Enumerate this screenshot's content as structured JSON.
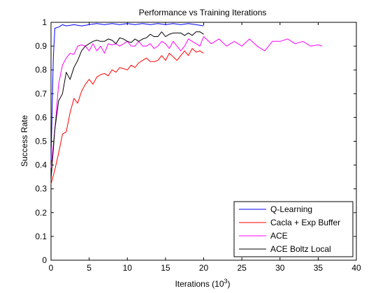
{
  "chart_data": {
    "type": "line",
    "title": "Performance vs Training Iterations",
    "xlabel": "Iterations (10",
    "xlabel_sup": "3",
    "xlabel_close": ")",
    "ylabel": "Success Rate",
    "xlim": [
      0,
      40
    ],
    "ylim": [
      0,
      1
    ],
    "xticks": [
      0,
      5,
      10,
      15,
      20,
      25,
      30,
      35,
      40
    ],
    "yticks": [
      0,
      0.1,
      0.2,
      0.3,
      0.4,
      0.5,
      0.6,
      0.7,
      0.8,
      0.9,
      1
    ],
    "xtick_labels": [
      "0",
      "5",
      "10",
      "15",
      "20",
      "25",
      "30",
      "35",
      "40"
    ],
    "ytick_labels": [
      "0",
      "0.1",
      "0.2",
      "0.3",
      "0.4",
      "0.5",
      "0.6",
      "0.7",
      "0.8",
      "0.9",
      "1"
    ],
    "grid": false,
    "legend_position": "bottom-right",
    "series": [
      {
        "name": "Q-Learning",
        "color": "#0000ff",
        "x": [
          0,
          0.3,
          0.5,
          1,
          1.5,
          2,
          3,
          4,
          5,
          6,
          7,
          8,
          9,
          10,
          11,
          12,
          13,
          14,
          15,
          16,
          17,
          18,
          19,
          20
        ],
        "y": [
          0.42,
          0.85,
          0.975,
          0.98,
          0.99,
          0.985,
          0.99,
          0.985,
          0.99,
          0.995,
          0.99,
          0.995,
          0.99,
          0.995,
          0.99,
          0.995,
          0.99,
          0.995,
          0.99,
          0.995,
          0.99,
          0.995,
          0.99,
          0.985
        ]
      },
      {
        "name": "Cacla + Exp Buffer",
        "color": "#ff0000",
        "x": [
          0,
          0.5,
          1,
          1.5,
          2,
          2.5,
          3,
          3.5,
          4,
          4.5,
          5,
          5.5,
          6,
          6.5,
          7,
          7.5,
          8,
          8.5,
          9,
          9.5,
          10,
          10.5,
          11,
          11.5,
          12,
          12.5,
          13,
          13.5,
          14,
          14.5,
          15,
          15.5,
          16,
          16.5,
          17,
          17.5,
          18,
          18.5,
          19,
          19.5,
          20
        ],
        "y": [
          0.32,
          0.38,
          0.45,
          0.53,
          0.54,
          0.62,
          0.68,
          0.66,
          0.71,
          0.74,
          0.76,
          0.74,
          0.77,
          0.78,
          0.785,
          0.775,
          0.8,
          0.79,
          0.81,
          0.805,
          0.8,
          0.82,
          0.81,
          0.83,
          0.84,
          0.85,
          0.835,
          0.835,
          0.84,
          0.86,
          0.84,
          0.87,
          0.855,
          0.84,
          0.86,
          0.88,
          0.86,
          0.89,
          0.875,
          0.88,
          0.87
        ]
      },
      {
        "name": "ACE",
        "color": "#ff00ff",
        "x": [
          0,
          0.5,
          1,
          1.5,
          2,
          2.5,
          3,
          3.5,
          4,
          4.5,
          5,
          5.5,
          6,
          6.5,
          7,
          7.5,
          8,
          8.5,
          9,
          9.5,
          10,
          10.5,
          11,
          11.5,
          12,
          12.5,
          13,
          13.5,
          14,
          14.5,
          15,
          15.5,
          16,
          16.5,
          17,
          17.5,
          18,
          18.5,
          19,
          19.5,
          20,
          21,
          22,
          23,
          24,
          25,
          26,
          27,
          28,
          29,
          30,
          31,
          32,
          33,
          34,
          35,
          35.5
        ],
        "y": [
          0.39,
          0.55,
          0.74,
          0.82,
          0.85,
          0.87,
          0.865,
          0.9,
          0.905,
          0.9,
          0.88,
          0.91,
          0.88,
          0.9,
          0.87,
          0.91,
          0.905,
          0.91,
          0.9,
          0.91,
          0.92,
          0.9,
          0.9,
          0.92,
          0.9,
          0.9,
          0.91,
          0.89,
          0.9,
          0.92,
          0.91,
          0.89,
          0.92,
          0.9,
          0.88,
          0.9,
          0.93,
          0.92,
          0.91,
          0.9,
          0.94,
          0.91,
          0.93,
          0.9,
          0.92,
          0.9,
          0.93,
          0.9,
          0.88,
          0.92,
          0.92,
          0.93,
          0.91,
          0.92,
          0.9,
          0.905,
          0.9
        ]
      },
      {
        "name": "ACE Boltz Local",
        "color": "#000000",
        "x": [
          0,
          0.5,
          1,
          1.5,
          2,
          2.5,
          3,
          3.5,
          4,
          4.5,
          5,
          5.5,
          6,
          6.5,
          7,
          7.5,
          8,
          8.5,
          9,
          9.5,
          10,
          10.5,
          11,
          11.5,
          12,
          12.5,
          13,
          13.5,
          14,
          14.5,
          15,
          15.5,
          16,
          16.5,
          17,
          17.5,
          18,
          18.5,
          19,
          19.5,
          20
        ],
        "y": [
          0.34,
          0.55,
          0.67,
          0.7,
          0.79,
          0.76,
          0.81,
          0.84,
          0.88,
          0.9,
          0.91,
          0.92,
          0.925,
          0.92,
          0.92,
          0.93,
          0.925,
          0.91,
          0.935,
          0.93,
          0.92,
          0.915,
          0.93,
          0.92,
          0.93,
          0.935,
          0.95,
          0.94,
          0.94,
          0.96,
          0.94,
          0.95,
          0.955,
          0.955,
          0.955,
          0.945,
          0.955,
          0.945,
          0.96,
          0.96,
          0.95
        ]
      }
    ]
  }
}
